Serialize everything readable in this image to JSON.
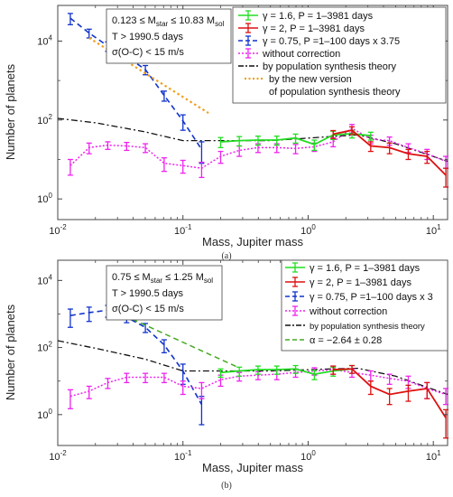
{
  "chart_data": [
    {
      "type": "line",
      "panel_label": "(a)",
      "xlabel": "Mass, Jupiter mass",
      "ylabel": "Number of planets",
      "xscale": "log",
      "yscale": "log",
      "xlim": [
        0.01,
        13
      ],
      "ylim": [
        0.3,
        80000
      ],
      "x_ticks": [
        "10",
        "10",
        "10",
        "10"
      ],
      "x_tick_exps": [
        "-2",
        "-1",
        "0",
        "1"
      ],
      "y_ticks": [
        "10",
        "10",
        "10"
      ],
      "y_tick_exps": [
        "0",
        "2",
        "4"
      ],
      "info_box": {
        "lines": [
          "0.123 ≤ M",
          "star",
          " ≤ 10.83 M",
          "sol"
        ],
        "line2": "T > 1990.5 days",
        "line3": "σ(O-C) < 15 m/s"
      },
      "legend": [
        {
          "label": "γ = 1.6, P = 1–3981 days",
          "color": "#22dd22",
          "style": "solid-err"
        },
        {
          "label": "γ = 2, P = 1–3981 days",
          "color": "#dd1111",
          "style": "solid-err"
        },
        {
          "label": "γ = 0.75, P =1–100 days x 3.75",
          "color": "#1133cc",
          "style": "dash-err"
        },
        {
          "label": "without correction",
          "color": "#ee22ee",
          "style": "dot-err"
        },
        {
          "label": "by population synthesis theory",
          "color": "#111111",
          "style": "dashdot"
        },
        {
          "label": "by the new version",
          "color": "#f0a020",
          "style": "dot"
        },
        {
          "label": "of population synthesis theory",
          "color": "",
          "style": "none"
        }
      ],
      "series": [
        {
          "color": "#1133cc",
          "dash": "6,4",
          "width": 1.6,
          "x": [
            0.0126,
            0.0178,
            0.0251,
            0.0355,
            0.0501,
            0.0708,
            0.1,
            0.141
          ],
          "y": [
            38000,
            16000,
            7500,
            4000,
            1900,
            420,
            95,
            18
          ],
          "err": [
            12000,
            4000,
            2000,
            1000,
            500,
            120,
            40,
            10
          ]
        },
        {
          "color": "#f0a020",
          "dash": "2.5,3",
          "width": 2.2,
          "x": [
            0.0178,
            0.16
          ],
          "y": [
            12000,
            150
          ],
          "err": []
        },
        {
          "color": "#111111",
          "dash": "7,3,2,3",
          "width": 1.3,
          "x": [
            0.01,
            0.02,
            0.05,
            0.1,
            0.5,
            1.5,
            2.5,
            5,
            13
          ],
          "y": [
            110,
            85,
            50,
            30,
            30,
            38,
            42,
            25,
            9
          ],
          "err": []
        },
        {
          "color": "#ee22ee",
          "dash": "2,2",
          "width": 1.5,
          "x": [
            0.0126,
            0.0178,
            0.0251,
            0.0355,
            0.0501,
            0.0708,
            0.1,
            0.141,
            0.2,
            0.282,
            0.398,
            0.562,
            0.794,
            1.122,
            1.585,
            2.239,
            3.162,
            4.467,
            6.31,
            8.913,
            12.59
          ],
          "y": [
            7,
            20,
            23,
            22,
            20,
            8,
            7,
            6,
            12,
            17,
            20,
            20,
            19,
            21,
            28,
            62,
            33,
            30,
            20,
            14,
            9
          ],
          "err": [
            3,
            6,
            5,
            5,
            5,
            3,
            2.5,
            2.5,
            4,
            5,
            5,
            5,
            5,
            5,
            7,
            15,
            8,
            7,
            5,
            4,
            3
          ]
        },
        {
          "color": "#22dd22",
          "dash": "",
          "width": 1.8,
          "x": [
            0.2,
            0.282,
            0.398,
            0.562,
            0.794,
            1.122,
            1.585,
            2.239,
            3.162
          ],
          "y": [
            28,
            30,
            31,
            31,
            35,
            24,
            42,
            45,
            40
          ],
          "err": [
            8,
            8,
            8,
            8,
            9,
            7,
            10,
            10,
            9
          ]
        },
        {
          "color": "#dd1111",
          "dash": "",
          "width": 1.8,
          "x": [
            1.585,
            2.239,
            3.162,
            4.467,
            6.31,
            8.913,
            12.59
          ],
          "y": [
            44,
            55,
            22,
            20,
            14,
            12,
            4
          ],
          "err": [
            10,
            12,
            6,
            6,
            4,
            4,
            2
          ]
        }
      ]
    },
    {
      "type": "line",
      "panel_label": "(b)",
      "xlabel": "Mass, Jupiter mass",
      "ylabel": "Number of planets",
      "xscale": "log",
      "yscale": "log",
      "xlim": [
        0.01,
        13
      ],
      "ylim": [
        0.12,
        40000
      ],
      "x_ticks": [
        "10",
        "10",
        "10",
        "10"
      ],
      "x_tick_exps": [
        "-2",
        "-1",
        "0",
        "1"
      ],
      "y_ticks": [
        "10",
        "10",
        "10"
      ],
      "y_tick_exps": [
        "0",
        "2",
        "4"
      ],
      "info_box": {
        "lines": [
          "0.75 ≤ M",
          "star",
          " ≤ 1.25 M",
          "sol"
        ],
        "line2": "T > 1990.5 days",
        "line3": "σ(O-C) < 15 m/s"
      },
      "legend": [
        {
          "label": "γ = 1.6, P = 1–3981 days",
          "color": "#22dd22",
          "style": "solid-err"
        },
        {
          "label": "γ = 2, P = 1–3981 days",
          "color": "#dd1111",
          "style": "solid-err"
        },
        {
          "label": "γ = 0.75, P =1–100 days x 3",
          "color": "#1133cc",
          "style": "dash-err"
        },
        {
          "label": "without correction",
          "color": "#ee22ee",
          "style": "dot-err"
        },
        {
          "label": "by population synthesis theory",
          "color": "#111111",
          "style": "dashdot"
        },
        {
          "label": "α = −2.64 ± 0.28",
          "color": "#44aa22",
          "style": "dash"
        }
      ],
      "series": [
        {
          "color": "#1133cc",
          "dash": "6,4",
          "width": 1.6,
          "x": [
            0.0126,
            0.0178,
            0.0251,
            0.0355,
            0.0501,
            0.0708,
            0.1,
            0.141
          ],
          "y": [
            900,
            1100,
            1300,
            800,
            400,
            120,
            20,
            2
          ],
          "err": [
            500,
            500,
            500,
            250,
            120,
            50,
            12,
            1.5
          ]
        },
        {
          "color": "#44aa22",
          "dash": "6,4",
          "width": 1.5,
          "x": [
            0.0251,
            0.28
          ],
          "y": [
            1500,
            25
          ],
          "err": []
        },
        {
          "color": "#111111",
          "dash": "7,3,2,3",
          "width": 1.3,
          "x": [
            0.01,
            0.02,
            0.05,
            0.1,
            0.5,
            1.5,
            2.5,
            5,
            13
          ],
          "y": [
            160,
            95,
            45,
            20,
            20,
            23,
            24,
            14,
            4
          ],
          "err": []
        },
        {
          "color": "#ee22ee",
          "dash": "2,2",
          "width": 1.5,
          "x": [
            0.0126,
            0.0178,
            0.0251,
            0.0355,
            0.0501,
            0.0708,
            0.1,
            0.141,
            0.2,
            0.282,
            0.398,
            0.562,
            0.794,
            1.122,
            1.585,
            2.239,
            3.162,
            4.467,
            6.31,
            8.913,
            12.59
          ],
          "y": [
            3.5,
            5,
            9,
            13,
            13,
            13,
            7,
            6,
            11,
            14,
            15,
            16,
            18,
            20,
            22,
            18,
            15,
            12,
            10,
            6,
            4
          ],
          "err": [
            2,
            2,
            3,
            4,
            4,
            4,
            3,
            3,
            4,
            4,
            4,
            5,
            5,
            5,
            6,
            5,
            5,
            4,
            4,
            3,
            2
          ]
        },
        {
          "color": "#22dd22",
          "dash": "",
          "width": 1.8,
          "x": [
            0.2,
            0.282,
            0.398,
            0.562,
            0.794,
            1.122,
            1.585,
            2.239
          ],
          "y": [
            18,
            20,
            22,
            22,
            23,
            16,
            20,
            23
          ],
          "err": [
            5,
            6,
            6,
            6,
            6,
            5,
            6,
            6
          ]
        },
        {
          "color": "#dd1111",
          "dash": "",
          "width": 1.8,
          "x": [
            1.585,
            2.239,
            3.162,
            4.467,
            6.31,
            8.913,
            12.59
          ],
          "y": [
            22,
            23,
            7,
            4,
            5,
            6,
            0.8
          ],
          "err": [
            6,
            6,
            3,
            2,
            2.5,
            3,
            0.6
          ]
        }
      ]
    }
  ]
}
